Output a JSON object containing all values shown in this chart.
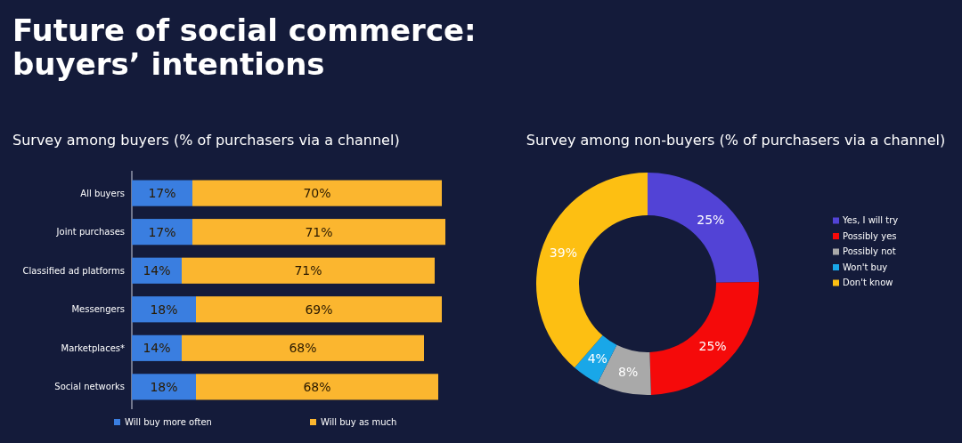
{
  "chart_data": [
    {
      "type": "bar",
      "title": "Future of social commerce: buyers’ intentions",
      "subtitle": "Survey among buyers (% of purchasers via a channel)",
      "orientation": "horizontal",
      "stacked": true,
      "legend": "bottom",
      "categories": [
        "All buyers",
        "Joint purchases",
        "Classified ad platforms",
        "Messengers",
        "Marketplaces*",
        "Social networks"
      ],
      "series": [
        {
          "name": "Will buy more often",
          "color": "#3a7ee0",
          "values": [
            17,
            17,
            14,
            18,
            14,
            18
          ],
          "value_labels": [
            "17%",
            "17%",
            "14%",
            "18%",
            "14%",
            "18%"
          ]
        },
        {
          "name": "Will buy as much",
          "color": "#fbb62f",
          "values": [
            70,
            71,
            71,
            69,
            68,
            68
          ],
          "value_labels": [
            "70%",
            "71%",
            "71%",
            "69%",
            "68%",
            "68%"
          ]
        }
      ]
    },
    {
      "type": "donut",
      "title": "Survey among non-buyers (% of purchasers via a channel)",
      "legend": "right",
      "categories": [
        "Yes, I will try",
        "Possibly yes",
        "Possibly not",
        "Won't buy",
        "Don't know"
      ],
      "values": [
        25,
        25,
        8,
        4,
        39
      ],
      "value_labels": [
        "25%",
        "25%",
        "8%",
        "4%",
        "39%"
      ],
      "colors": [
        "#5243d6",
        "#f50a0a",
        "#a9a9a9",
        "#19a7e8",
        "#fdbf12"
      ]
    }
  ]
}
